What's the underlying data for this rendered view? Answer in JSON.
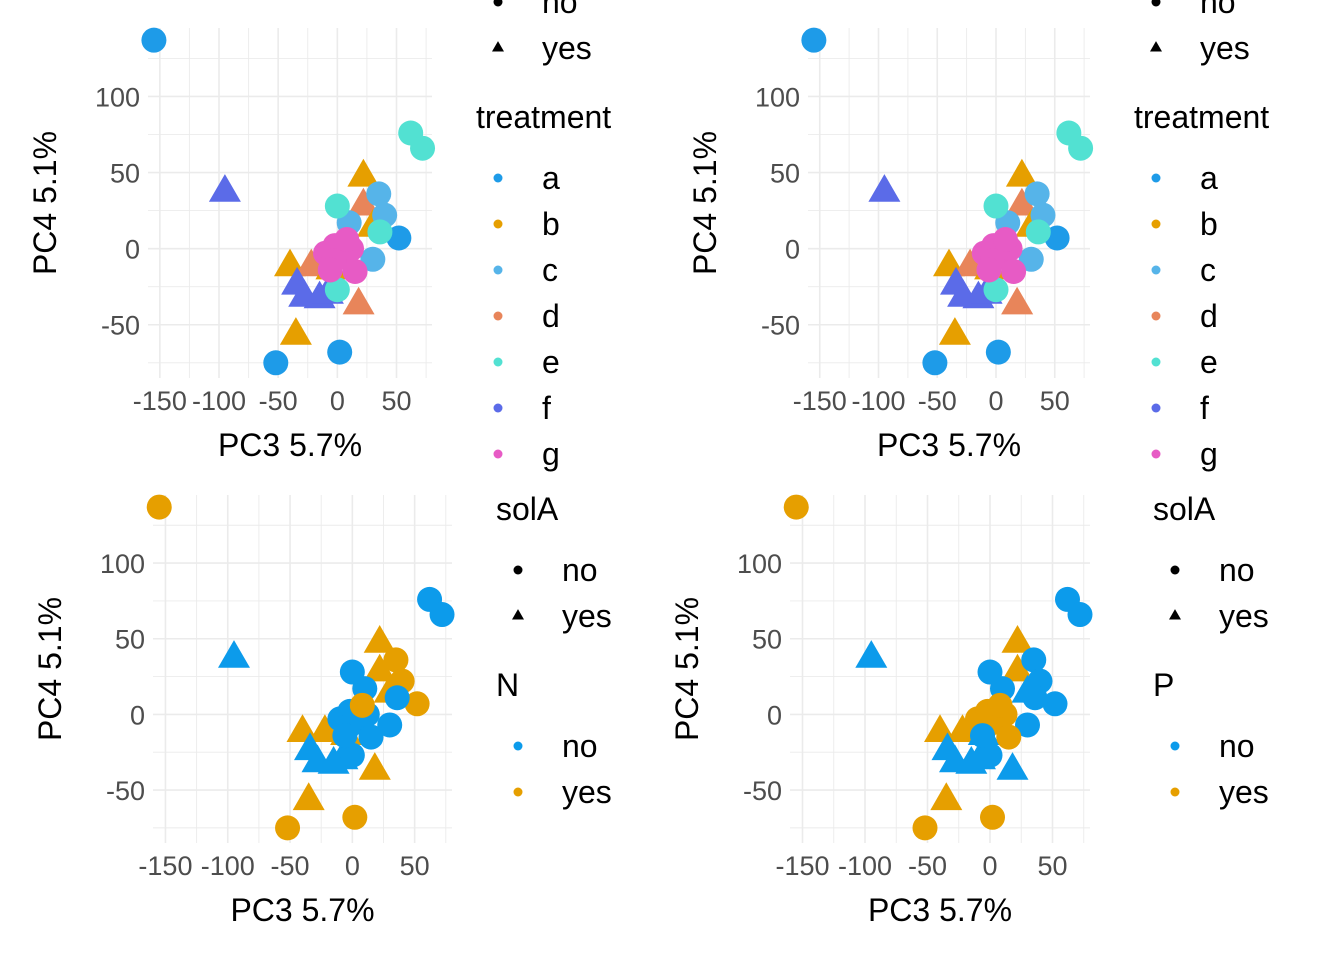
{
  "chart_data": [
    {
      "type": "scatter",
      "xlabel": "PC3 5.7%",
      "ylabel": "PC4 5.1%",
      "xlim": [
        -160,
        80
      ],
      "ylim": [
        -85,
        145
      ],
      "x_ticks": [
        -150,
        -100,
        -50,
        0,
        50
      ],
      "x_tick_labels": [
        "-150",
        "-100",
        "-50",
        "0",
        "50"
      ],
      "y_ticks": [
        -50,
        0,
        50,
        100
      ],
      "y_tick_labels": [
        "-50",
        "0",
        "50",
        "100"
      ],
      "grid": true,
      "color_by": "treatment",
      "legends": [
        {
          "title": "",
          "kind": "shape",
          "entries": [
            {
              "label": "no",
              "shape": "circle"
            },
            {
              "label": "yes",
              "shape": "triangle"
            }
          ]
        },
        {
          "title": "treatment",
          "kind": "color",
          "entries": [
            {
              "label": "a",
              "color": "#1E9BE8"
            },
            {
              "label": "b",
              "color": "#E69F00"
            },
            {
              "label": "c",
              "color": "#56B4E9"
            },
            {
              "label": "d",
              "color": "#E8855A"
            },
            {
              "label": "e",
              "color": "#52E1D2"
            },
            {
              "label": "f",
              "color": "#5B6BE8"
            },
            {
              "label": "g",
              "color": "#E75BC5"
            }
          ]
        }
      ]
    },
    {
      "type": "scatter",
      "xlabel": "PC3 5.7%",
      "ylabel": "PC4 5.1%",
      "xlim": [
        -160,
        80
      ],
      "ylim": [
        -85,
        145
      ],
      "x_ticks": [
        -150,
        -100,
        -50,
        0,
        50
      ],
      "x_tick_labels": [
        "-150",
        "-100",
        "-50",
        "0",
        "50"
      ],
      "y_ticks": [
        -50,
        0,
        50,
        100
      ],
      "y_tick_labels": [
        "-50",
        "0",
        "50",
        "100"
      ],
      "grid": true,
      "color_by": "treatment",
      "legends": [
        {
          "title": "",
          "kind": "shape",
          "entries": [
            {
              "label": "no",
              "shape": "circle"
            },
            {
              "label": "yes",
              "shape": "triangle"
            }
          ]
        },
        {
          "title": "treatment",
          "kind": "color",
          "entries": [
            {
              "label": "a",
              "color": "#1E9BE8"
            },
            {
              "label": "b",
              "color": "#E69F00"
            },
            {
              "label": "c",
              "color": "#56B4E9"
            },
            {
              "label": "d",
              "color": "#E8855A"
            },
            {
              "label": "e",
              "color": "#52E1D2"
            },
            {
              "label": "f",
              "color": "#5B6BE8"
            },
            {
              "label": "g",
              "color": "#E75BC5"
            }
          ]
        }
      ]
    },
    {
      "type": "scatter",
      "xlabel": "PC3 5.7%",
      "ylabel": "PC4 5.1%",
      "xlim": [
        -160,
        80
      ],
      "ylim": [
        -85,
        145
      ],
      "x_ticks": [
        -150,
        -100,
        -50,
        0,
        50
      ],
      "x_tick_labels": [
        "-150",
        "-100",
        "-50",
        "0",
        "50"
      ],
      "y_ticks": [
        -50,
        0,
        50,
        100
      ],
      "y_tick_labels": [
        "-50",
        "0",
        "50",
        "100"
      ],
      "grid": true,
      "color_by": "N",
      "legends": [
        {
          "title": "solA",
          "kind": "shape",
          "entries": [
            {
              "label": "no",
              "shape": "circle"
            },
            {
              "label": "yes",
              "shape": "triangle"
            }
          ]
        },
        {
          "title": "N",
          "kind": "color",
          "entries": [
            {
              "label": "no",
              "color": "#0C9BEB"
            },
            {
              "label": "yes",
              "color": "#E69F00"
            }
          ]
        }
      ]
    },
    {
      "type": "scatter",
      "xlabel": "PC3 5.7%",
      "ylabel": "PC4 5.1%",
      "xlim": [
        -160,
        80
      ],
      "ylim": [
        -85,
        145
      ],
      "x_ticks": [
        -150,
        -100,
        -50,
        0,
        50
      ],
      "x_tick_labels": [
        "-150",
        "-100",
        "-50",
        "0",
        "50"
      ],
      "y_ticks": [
        -50,
        0,
        50,
        100
      ],
      "y_tick_labels": [
        "-50",
        "0",
        "50",
        "100"
      ],
      "grid": true,
      "color_by": "P",
      "legends": [
        {
          "title": "solA",
          "kind": "shape",
          "entries": [
            {
              "label": "no",
              "shape": "circle"
            },
            {
              "label": "yes",
              "shape": "triangle"
            }
          ]
        },
        {
          "title": "P",
          "kind": "color",
          "entries": [
            {
              "label": "no",
              "color": "#0C9BEB"
            },
            {
              "label": "yes",
              "color": "#E69F00"
            }
          ]
        }
      ]
    }
  ],
  "points": [
    {
      "x": -155,
      "y": 137,
      "shape": "circle",
      "treatment": "a",
      "N": "yes",
      "P": "yes"
    },
    {
      "x": -52,
      "y": -75,
      "shape": "circle",
      "treatment": "a",
      "N": "yes",
      "P": "yes"
    },
    {
      "x": 2,
      "y": -68,
      "shape": "circle",
      "treatment": "a",
      "N": "yes",
      "P": "yes"
    },
    {
      "x": 52,
      "y": 7,
      "shape": "circle",
      "treatment": "a",
      "N": "yes",
      "P": "no"
    },
    {
      "x": -95,
      "y": 37,
      "shape": "triangle",
      "treatment": "f",
      "N": "no",
      "P": "no"
    },
    {
      "x": -35,
      "y": -57,
      "shape": "triangle",
      "treatment": "b",
      "N": "yes",
      "P": "yes"
    },
    {
      "x": -40,
      "y": -12,
      "shape": "triangle",
      "treatment": "b",
      "N": "yes",
      "P": "yes"
    },
    {
      "x": 22,
      "y": 47,
      "shape": "triangle",
      "treatment": "b",
      "N": "yes",
      "P": "yes"
    },
    {
      "x": -22,
      "y": -12,
      "shape": "triangle",
      "treatment": "d",
      "N": "yes",
      "P": "yes"
    },
    {
      "x": 22,
      "y": 28,
      "shape": "triangle",
      "treatment": "d",
      "N": "yes",
      "P": "yes"
    },
    {
      "x": 18,
      "y": -37,
      "shape": "triangle",
      "treatment": "d",
      "N": "yes",
      "P": "no"
    },
    {
      "x": -5,
      "y": -14,
      "shape": "triangle",
      "treatment": "b",
      "N": "yes",
      "P": "no"
    },
    {
      "x": 30,
      "y": 14,
      "shape": "triangle",
      "treatment": "b",
      "N": "yes",
      "P": "no"
    },
    {
      "x": -34,
      "y": -24,
      "shape": "triangle",
      "treatment": "f",
      "N": "no",
      "P": "no"
    },
    {
      "x": -28,
      "y": -32,
      "shape": "triangle",
      "treatment": "f",
      "N": "no",
      "P": "no"
    },
    {
      "x": -15,
      "y": -33,
      "shape": "triangle",
      "treatment": "f",
      "N": "no",
      "P": "no"
    },
    {
      "x": -8,
      "y": -30,
      "shape": "triangle",
      "treatment": "f",
      "N": "no",
      "P": "no"
    },
    {
      "x": 35,
      "y": 36,
      "shape": "circle",
      "treatment": "c",
      "N": "yes",
      "P": "no"
    },
    {
      "x": 40,
      "y": 22,
      "shape": "circle",
      "treatment": "c",
      "N": "yes",
      "P": "no"
    },
    {
      "x": 30,
      "y": -7,
      "shape": "circle",
      "treatment": "c",
      "N": "no",
      "P": "no"
    },
    {
      "x": 10,
      "y": 17,
      "shape": "circle",
      "treatment": "c",
      "N": "no",
      "P": "no"
    },
    {
      "x": 36,
      "y": 11,
      "shape": "circle",
      "treatment": "e",
      "N": "no",
      "P": "no"
    },
    {
      "x": 0,
      "y": 28,
      "shape": "circle",
      "treatment": "e",
      "N": "no",
      "P": "no"
    },
    {
      "x": 0,
      "y": -27,
      "shape": "circle",
      "treatment": "e",
      "N": "no",
      "P": "no"
    },
    {
      "x": 62,
      "y": 76,
      "shape": "circle",
      "treatment": "e",
      "N": "no",
      "P": "no"
    },
    {
      "x": 72,
      "y": 66,
      "shape": "circle",
      "treatment": "e",
      "N": "no",
      "P": "no"
    },
    {
      "x": -10,
      "y": -3,
      "shape": "circle",
      "treatment": "g",
      "N": "no",
      "P": "yes"
    },
    {
      "x": -2,
      "y": 2,
      "shape": "circle",
      "treatment": "g",
      "N": "no",
      "P": "yes"
    },
    {
      "x": 5,
      "y": -5,
      "shape": "circle",
      "treatment": "g",
      "N": "no",
      "P": "yes"
    },
    {
      "x": 12,
      "y": 0,
      "shape": "circle",
      "treatment": "g",
      "N": "no",
      "P": "yes"
    },
    {
      "x": 15,
      "y": -15,
      "shape": "circle",
      "treatment": "g",
      "N": "no",
      "P": "yes"
    },
    {
      "x": -3,
      "y": -8,
      "shape": "circle",
      "treatment": "g",
      "N": "no",
      "P": "yes"
    },
    {
      "x": 8,
      "y": 6,
      "shape": "circle",
      "treatment": "g",
      "N": "yes",
      "P": "yes"
    },
    {
      "x": -6,
      "y": -14,
      "shape": "circle",
      "treatment": "g",
      "N": "no",
      "P": "no"
    }
  ]
}
